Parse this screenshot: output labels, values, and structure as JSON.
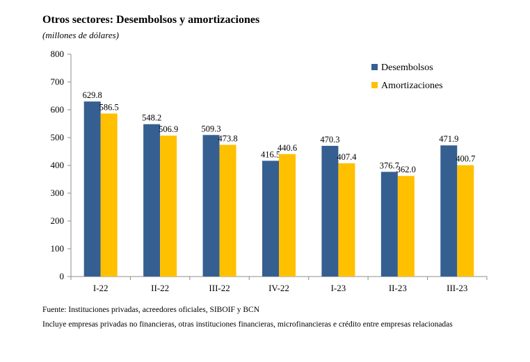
{
  "title": "Otros sectores: Desembolsos y amortizaciones",
  "subtitle": "(millones de dólares)",
  "chart_data": {
    "type": "bar",
    "categories": [
      "I-22",
      "II-22",
      "III-22",
      "IV-22",
      "I-23",
      "II-23",
      "III-23"
    ],
    "series": [
      {
        "name": "Desembolsos",
        "values": [
          629.8,
          548.2,
          509.3,
          416.5,
          470.3,
          376.7,
          471.9
        ],
        "labels": [
          "629.8",
          "548.2",
          "509.3",
          "416.5",
          "470.3",
          "376.7",
          "471.9"
        ],
        "color": "#365F91"
      },
      {
        "name": "Amortizaciones",
        "values": [
          586.5,
          506.9,
          473.8,
          440.6,
          407.4,
          362.0,
          400.7
        ],
        "labels": [
          "586.5",
          "506.9",
          "473.8",
          "440.6",
          "407.4",
          "362.0",
          "400.7"
        ],
        "color": "#FFC000"
      }
    ],
    "ylim": [
      0,
      800
    ],
    "yticks": [
      "0",
      "100",
      "200",
      "300",
      "400",
      "500",
      "600",
      "700",
      "800"
    ],
    "grid": false,
    "legend": "top-right"
  },
  "notes": {
    "source": "Fuente:  Instituciones privadas, acreedores oficiales, SIBOIF y BCN",
    "footnote": "Incluye empresas privadas no financieras, otras instituciones financieras, microfinancieras e crédito entre empresas relacionadas"
  }
}
